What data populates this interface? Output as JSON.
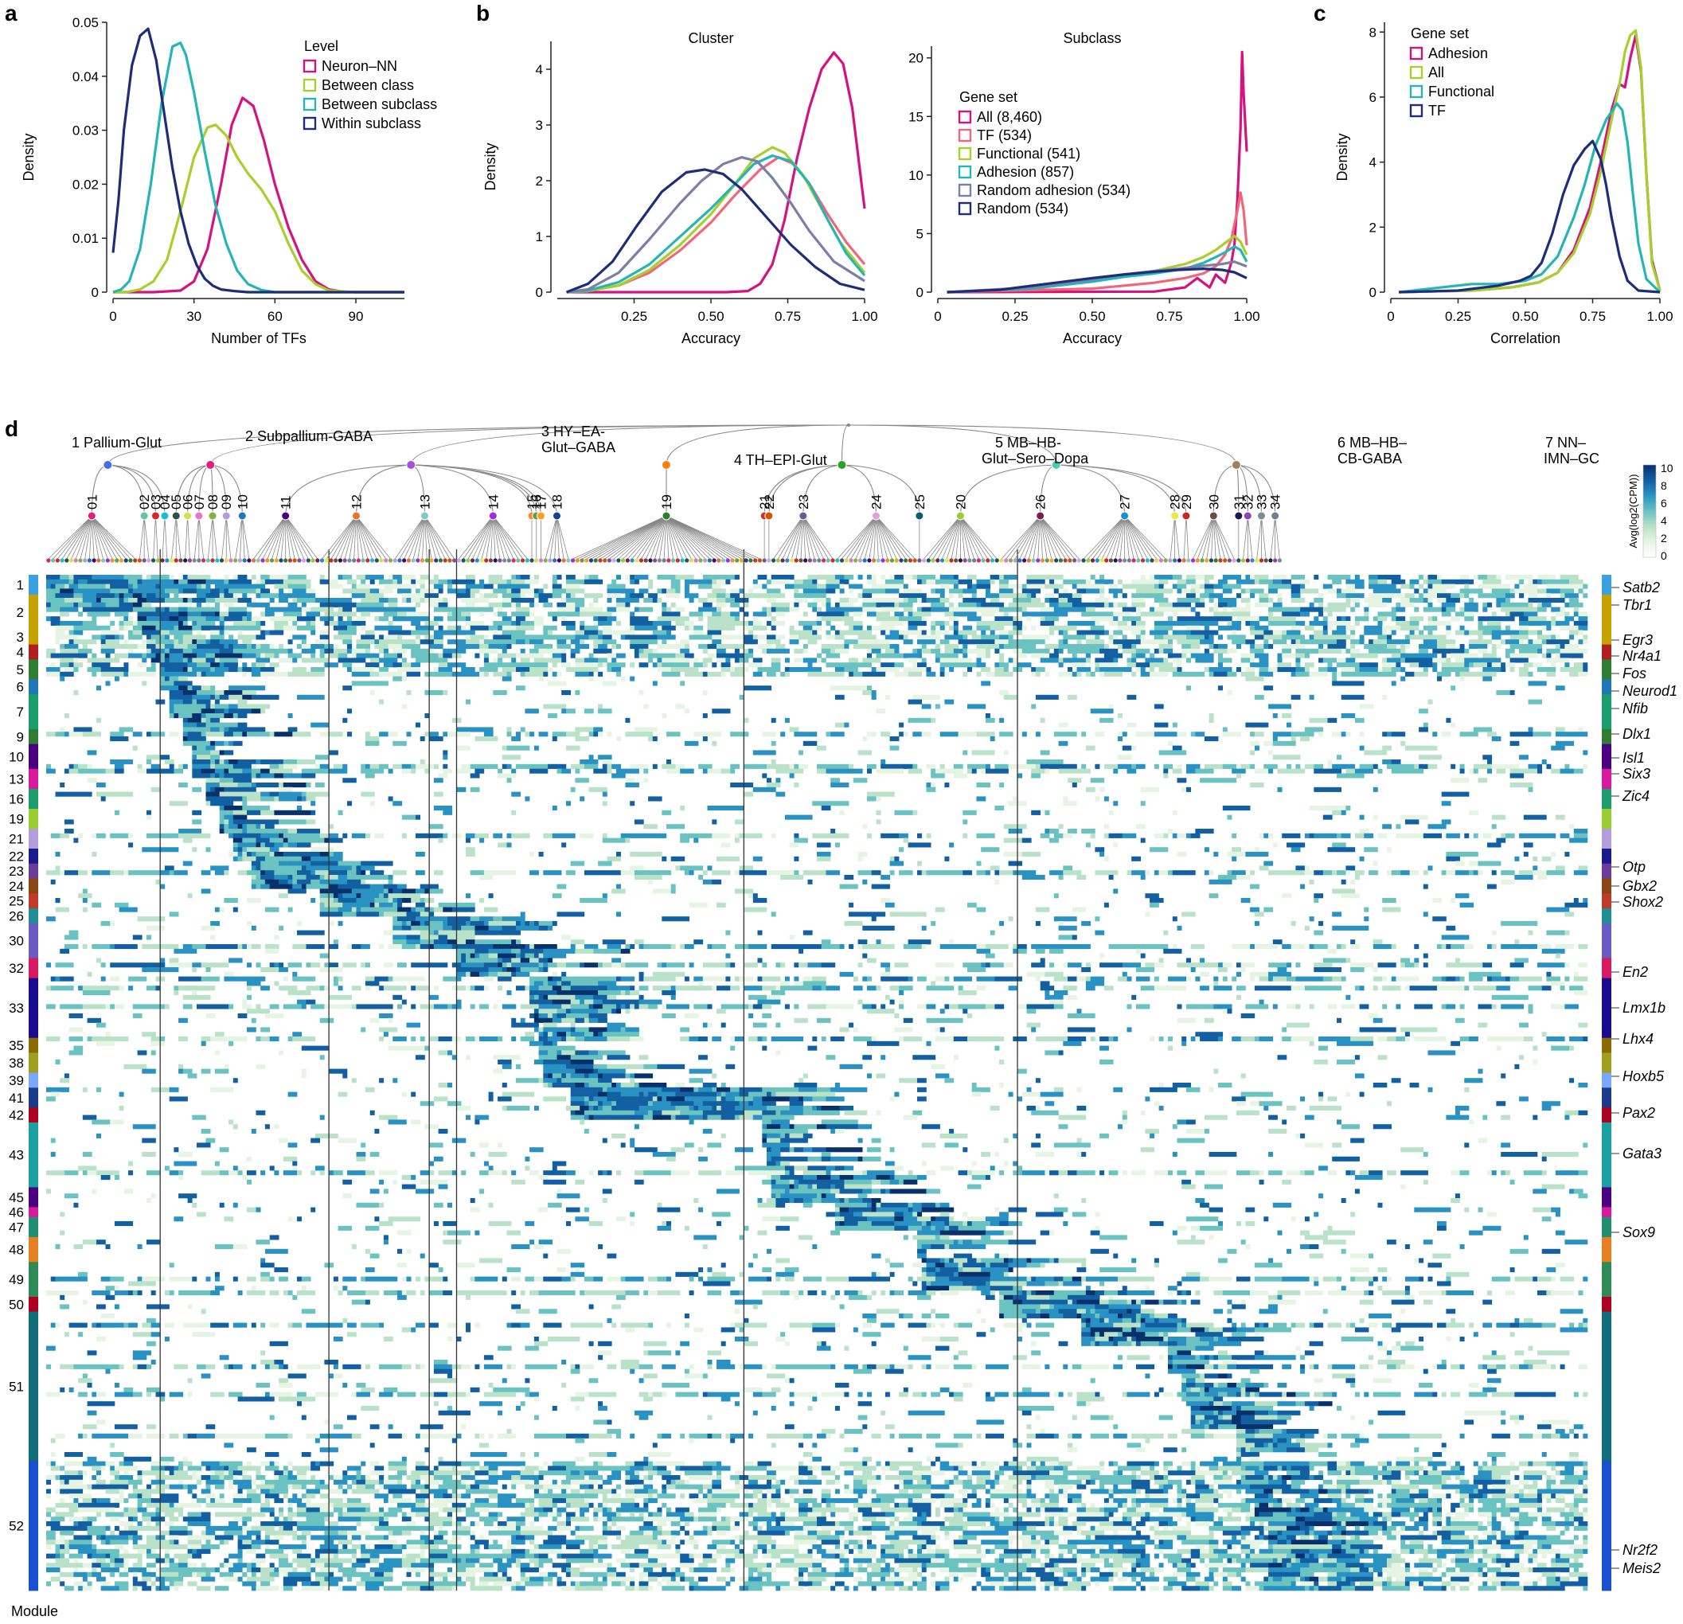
{
  "panel_letters": {
    "a": "a",
    "b": "b",
    "c": "c",
    "d": "d"
  },
  "chart_data": [
    {
      "panel": "a",
      "type": "line",
      "xlabel": "Number of TFs",
      "ylabel": "Density",
      "xlim": [
        0,
        108
      ],
      "ylim": [
        0,
        0.05
      ],
      "xticks": [
        0,
        30,
        60,
        90
      ],
      "xtick_labels": [
        "0",
        "30",
        "60",
        "90"
      ],
      "yticks": [
        0,
        0.01,
        0.02,
        0.03,
        0.04,
        0.05
      ],
      "ytick_labels": [
        "0",
        "0.01",
        "0.02",
        "0.03",
        "0.04",
        "0.05"
      ],
      "legend_title": "Level",
      "legend_position": "top-right",
      "series": [
        {
          "name": "Neuron–NN",
          "color": "#d4137f",
          "x": [
            0,
            15,
            25,
            30,
            35,
            40,
            44,
            48,
            52,
            56,
            60,
            65,
            70,
            75,
            80,
            85,
            90,
            108
          ],
          "y": [
            0,
            0,
            0.0003,
            0.002,
            0.008,
            0.02,
            0.031,
            0.036,
            0.0345,
            0.028,
            0.02,
            0.012,
            0.006,
            0.002,
            0.0005,
            0.0001,
            0,
            0
          ]
        },
        {
          "name": "Between class",
          "color": "#a8cf2c",
          "x": [
            0,
            5,
            10,
            15,
            20,
            25,
            30,
            35,
            38,
            42,
            46,
            50,
            55,
            60,
            65,
            70,
            75,
            80,
            90,
            108
          ],
          "y": [
            0,
            0,
            0.0005,
            0.002,
            0.006,
            0.015,
            0.025,
            0.0305,
            0.031,
            0.029,
            0.025,
            0.022,
            0.019,
            0.015,
            0.009,
            0.004,
            0.0015,
            0.0003,
            0,
            0
          ]
        },
        {
          "name": "Between subclass",
          "color": "#25b5b5",
          "x": [
            0,
            3,
            6,
            10,
            14,
            18,
            22,
            25,
            27,
            30,
            34,
            38,
            42,
            46,
            50,
            55,
            60,
            70,
            108
          ],
          "y": [
            0,
            0.0005,
            0.002,
            0.008,
            0.02,
            0.035,
            0.0455,
            0.0462,
            0.044,
            0.037,
            0.026,
            0.016,
            0.009,
            0.004,
            0.0015,
            0.0004,
            0,
            0,
            0
          ]
        },
        {
          "name": "Within subclass",
          "color": "#1d2d7a",
          "x": [
            0,
            2,
            4,
            7,
            10,
            13,
            16,
            19,
            22,
            25,
            28,
            31,
            34,
            37,
            40,
            45,
            50,
            60,
            108
          ],
          "y": [
            0.0073,
            0.017,
            0.03,
            0.042,
            0.0475,
            0.0488,
            0.043,
            0.033,
            0.023,
            0.015,
            0.009,
            0.005,
            0.0025,
            0.0012,
            0.0005,
            0.0002,
            0,
            0,
            0
          ]
        }
      ]
    },
    {
      "panel": "b",
      "type": "line",
      "title": "Cluster",
      "xlabel": "Accuracy",
      "ylabel": "Density",
      "xlim": [
        0,
        1
      ],
      "ylim": [
        0,
        4.5
      ],
      "xticks": [
        0.25,
        0.5,
        0.75,
        1.0
      ],
      "xtick_labels": [
        "0.25",
        "0.50",
        "0.75",
        "1.00"
      ],
      "yticks": [
        0,
        1,
        2,
        3,
        4
      ],
      "ytick_labels": [
        "0",
        "1",
        "2",
        "3",
        "4"
      ],
      "series": [
        {
          "name": "All (8,460)",
          "color": "#d4137f",
          "x": [
            0.03,
            0.55,
            0.62,
            0.66,
            0.7,
            0.74,
            0.78,
            0.82,
            0.86,
            0.9,
            0.93,
            0.96,
            0.98,
            1.0
          ],
          "y": [
            0,
            0,
            0.02,
            0.15,
            0.5,
            1.3,
            2.4,
            3.3,
            4.0,
            4.3,
            4.1,
            3.3,
            2.4,
            1.5
          ]
        },
        {
          "name": "TF (534)",
          "color": "#f2667b",
          "x": [
            0.03,
            0.1,
            0.2,
            0.3,
            0.4,
            0.5,
            0.58,
            0.66,
            0.72,
            0.77,
            0.82,
            0.88,
            0.94,
            1.0
          ],
          "y": [
            0,
            0.02,
            0.12,
            0.35,
            0.75,
            1.25,
            1.75,
            2.2,
            2.42,
            2.3,
            1.95,
            1.4,
            0.9,
            0.5
          ]
        },
        {
          "name": "Functional (541)",
          "color": "#a8cf2c",
          "x": [
            0.03,
            0.1,
            0.2,
            0.3,
            0.4,
            0.5,
            0.58,
            0.64,
            0.7,
            0.74,
            0.8,
            0.86,
            0.92,
            1.0
          ],
          "y": [
            0,
            0.02,
            0.12,
            0.4,
            0.85,
            1.4,
            1.95,
            2.4,
            2.6,
            2.5,
            2.1,
            1.5,
            0.9,
            0.35
          ]
        },
        {
          "name": "Adhesion (857)",
          "color": "#25b5b5",
          "x": [
            0.03,
            0.1,
            0.2,
            0.3,
            0.4,
            0.5,
            0.58,
            0.64,
            0.7,
            0.76,
            0.82,
            0.88,
            0.94,
            1.0
          ],
          "y": [
            0,
            0.03,
            0.18,
            0.5,
            1.0,
            1.5,
            1.95,
            2.3,
            2.45,
            2.35,
            1.95,
            1.3,
            0.7,
            0.3
          ]
        },
        {
          "name": "Random adhesion (534)",
          "color": "#7b7fa8",
          "x": [
            0.03,
            0.1,
            0.2,
            0.3,
            0.4,
            0.47,
            0.54,
            0.6,
            0.65,
            0.7,
            0.76,
            0.82,
            0.9,
            1.0
          ],
          "y": [
            0,
            0.05,
            0.35,
            0.95,
            1.6,
            2.0,
            2.3,
            2.42,
            2.35,
            2.05,
            1.6,
            1.1,
            0.55,
            0.2
          ]
        },
        {
          "name": "Random (534)",
          "color": "#1d2d7a",
          "x": [
            0.03,
            0.1,
            0.18,
            0.26,
            0.34,
            0.42,
            0.48,
            0.54,
            0.6,
            0.68,
            0.76,
            0.84,
            0.92,
            1.0
          ],
          "y": [
            0,
            0.15,
            0.55,
            1.2,
            1.8,
            2.15,
            2.2,
            2.12,
            1.85,
            1.35,
            0.85,
            0.45,
            0.15,
            0.04
          ]
        }
      ]
    },
    {
      "panel": "b",
      "type": "line",
      "title": "Subclass",
      "xlabel": "Accuracy",
      "xlim": [
        0,
        1
      ],
      "ylim": [
        0,
        21
      ],
      "xticks": [
        0,
        0.25,
        0.5,
        0.75,
        1.0
      ],
      "xtick_labels": [
        "0",
        "0.25",
        "0.50",
        "0.75",
        "1.00"
      ],
      "yticks": [
        0,
        5,
        10,
        15,
        20
      ],
      "ytick_labels": [
        "0",
        "5",
        "10",
        "15",
        "20"
      ],
      "legend_title": "Gene set",
      "legend_position": "center",
      "series": [
        {
          "name": "All (8,460)",
          "color": "#d4137f",
          "x": [
            0.03,
            0.7,
            0.8,
            0.84,
            0.88,
            0.9,
            0.93,
            0.95,
            0.96,
            0.97,
            0.98,
            0.985,
            0.99,
            1.0
          ],
          "y": [
            0,
            0.05,
            0.4,
            1.2,
            0.4,
            1.5,
            0.8,
            2.5,
            4,
            8,
            14,
            20.5,
            17,
            12
          ]
        },
        {
          "name": "TF (534)",
          "color": "#f2667b",
          "x": [
            0.03,
            0.5,
            0.7,
            0.8,
            0.86,
            0.9,
            0.93,
            0.95,
            0.97,
            0.98,
            0.99,
            1.0
          ],
          "y": [
            0,
            0.3,
            0.8,
            1.2,
            1.6,
            2.2,
            3.2,
            4.5,
            7,
            8.5,
            7,
            4
          ]
        },
        {
          "name": "Functional (541)",
          "color": "#a8cf2c",
          "x": [
            0.03,
            0.3,
            0.5,
            0.6,
            0.7,
            0.8,
            0.86,
            0.9,
            0.93,
            0.96,
            0.98,
            1.0
          ],
          "y": [
            0,
            0.3,
            1.0,
            1.4,
            1.8,
            2.4,
            3.0,
            3.6,
            4.2,
            4.8,
            4.3,
            3.2
          ]
        },
        {
          "name": "Adhesion (857)",
          "color": "#25b5b5",
          "x": [
            0.03,
            0.3,
            0.5,
            0.6,
            0.7,
            0.8,
            0.86,
            0.9,
            0.93,
            0.96,
            0.98,
            1.0
          ],
          "y": [
            0,
            0.3,
            0.9,
            1.3,
            1.6,
            2.0,
            2.5,
            3.0,
            3.4,
            3.9,
            3.6,
            2.6
          ]
        },
        {
          "name": "Random adhesion (534)",
          "color": "#7b7fa8",
          "x": [
            0.03,
            0.3,
            0.5,
            0.6,
            0.7,
            0.78,
            0.84,
            0.88,
            0.92,
            0.96,
            1.0
          ],
          "y": [
            0,
            0.4,
            1.1,
            1.5,
            1.8,
            2.0,
            2.2,
            2.3,
            2.4,
            2.6,
            2.2
          ]
        },
        {
          "name": "Random (534)",
          "color": "#1d2d7a",
          "x": [
            0.03,
            0.2,
            0.35,
            0.5,
            0.6,
            0.7,
            0.78,
            0.86,
            0.92,
            0.96,
            1.0
          ],
          "y": [
            0,
            0.2,
            0.7,
            1.2,
            1.5,
            1.75,
            1.9,
            2.0,
            1.9,
            1.7,
            1.2
          ]
        }
      ]
    },
    {
      "panel": "c",
      "type": "line",
      "xlabel": "Correlation",
      "ylabel": "Density",
      "xlim": [
        0,
        1
      ],
      "ylim": [
        0,
        8.3
      ],
      "xticks": [
        0,
        0.25,
        0.5,
        0.75,
        1.0
      ],
      "xtick_labels": [
        "0",
        "0.25",
        "0.50",
        "0.75",
        "1.00"
      ],
      "yticks": [
        0,
        2,
        4,
        6,
        8
      ],
      "ytick_labels": [
        "0",
        "2",
        "4",
        "6",
        "8"
      ],
      "legend_title": "Gene set",
      "legend_position": "top-left",
      "series": [
        {
          "name": "Adhesion",
          "color": "#d4137f",
          "x": [
            0.03,
            0.3,
            0.45,
            0.55,
            0.62,
            0.68,
            0.74,
            0.78,
            0.82,
            0.85,
            0.87,
            0.89,
            0.91,
            0.93,
            0.95,
            0.97,
            1.0
          ],
          "y": [
            0,
            0.05,
            0.15,
            0.3,
            0.6,
            1.3,
            2.6,
            4.0,
            5.6,
            6.4,
            6.3,
            7.2,
            7.9,
            6.8,
            3.6,
            1.0,
            0.05
          ]
        },
        {
          "name": "All",
          "color": "#a8cf2c",
          "x": [
            0.03,
            0.3,
            0.45,
            0.55,
            0.62,
            0.68,
            0.74,
            0.78,
            0.82,
            0.85,
            0.87,
            0.89,
            0.91,
            0.93,
            0.95,
            0.97,
            1.0
          ],
          "y": [
            0,
            0.05,
            0.15,
            0.3,
            0.6,
            1.2,
            2.4,
            3.7,
            5.3,
            6.4,
            7.4,
            7.9,
            8.05,
            6.9,
            3.6,
            0.9,
            0.05
          ]
        },
        {
          "name": "Functional",
          "color": "#25b5b5",
          "x": [
            0.03,
            0.3,
            0.4,
            0.5,
            0.56,
            0.62,
            0.68,
            0.72,
            0.76,
            0.8,
            0.84,
            0.86,
            0.88,
            0.9,
            0.92,
            0.95,
            1.0
          ],
          "y": [
            0,
            0.25,
            0.25,
            0.35,
            0.55,
            1.1,
            2.3,
            3.3,
            4.5,
            5.3,
            5.8,
            5.6,
            4.6,
            3.0,
            1.5,
            0.4,
            0
          ]
        },
        {
          "name": "TF",
          "color": "#1d2d7a",
          "x": [
            0.03,
            0.25,
            0.4,
            0.48,
            0.52,
            0.56,
            0.6,
            0.64,
            0.68,
            0.72,
            0.75,
            0.78,
            0.8,
            0.82,
            0.85,
            0.88,
            0.92,
            1.0
          ],
          "y": [
            0,
            0.05,
            0.2,
            0.35,
            0.5,
            0.9,
            1.8,
            3.0,
            3.9,
            4.4,
            4.65,
            4.1,
            3.3,
            2.3,
            1.1,
            0.35,
            0.05,
            0
          ]
        }
      ]
    },
    {
      "panel": "d",
      "type": "heatmap",
      "colorbar_label": "Avg(log2(CPM))",
      "colorbar_ticks": [
        "10",
        "8",
        "6",
        "4",
        "2",
        "0"
      ],
      "colorbar_range": [
        0,
        10
      ],
      "colorscale": [
        "#ffffff",
        "#e6f4e4",
        "#b9e2c8",
        "#6ac3c1",
        "#2a92c2",
        "#125fa2",
        "#08306b"
      ],
      "n_columns": 338,
      "n_rows": 220,
      "classes": [
        "1 Pallium-Glut",
        "2 Subpallium-GABA",
        "3 HY–EA-",
        "Glut–GABA",
        "4 TH–EPI-Glut",
        "5 MB–HB-",
        "Glut–Sero–Dopa",
        "6 MB–HB–",
        "CB-GABA",
        "7 NN–",
        "IMN–GC"
      ],
      "subclasses": [
        "01",
        "02",
        "03",
        "04",
        "05",
        "06",
        "07",
        "08",
        "09",
        "10",
        "11",
        "12",
        "13",
        "14",
        "15",
        "16",
        "17",
        "18",
        "19",
        "21",
        "22",
        "23",
        "24",
        "25",
        "20",
        "26",
        "27",
        "28",
        "29",
        "30",
        "31",
        "32",
        "33",
        "34"
      ],
      "module_axis_label": "Module",
      "module_labels": [
        "1",
        "2",
        "3",
        "4",
        "5",
        "6",
        "7",
        "9",
        "10",
        "13",
        "16",
        "19",
        "21",
        "22",
        "23",
        "24",
        "25",
        "26",
        "30",
        "32",
        "33",
        "35",
        "38",
        "39",
        "41",
        "42",
        "43",
        "45",
        "46",
        "47",
        "48",
        "49",
        "50",
        "51",
        "52"
      ],
      "marker_genes": [
        "Satb2",
        "Tbr1",
        "Egr3",
        "Nr4a1",
        "Fos",
        "Neurod1",
        "Nfib",
        "Dlx1",
        "Isl1",
        "Six3",
        "Zic4",
        "Otp",
        "Gbx2",
        "Shox2",
        "En2",
        "Lmx1b",
        "Lhx4",
        "Hoxb5",
        "Pax2",
        "Gata3",
        "Sox9",
        "Nr2f2",
        "Meis2"
      ]
    }
  ]
}
